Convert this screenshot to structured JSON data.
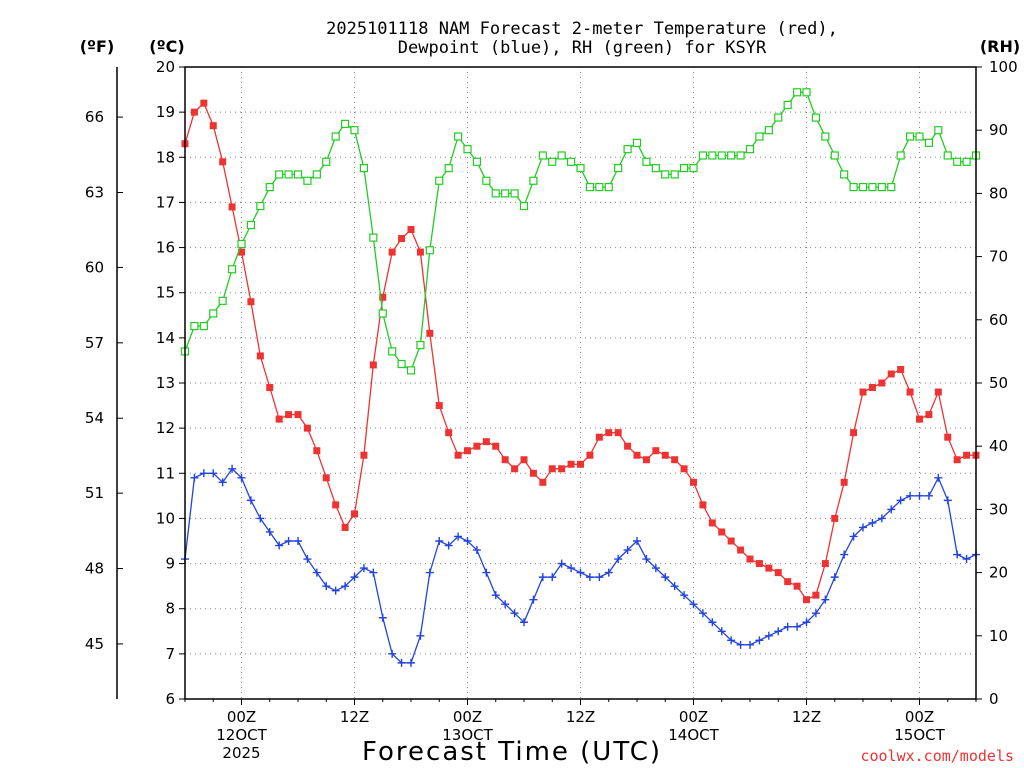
{
  "chart_data": {
    "type": "line",
    "title_line1": "2025101118 NAM Forecast 2-meter Temperature (red),",
    "title_line2": "Dewpoint (blue), RH (green) for KSYR",
    "unit_f": "(ºF)",
    "unit_c": "(ºC)",
    "unit_rh": "(RH)",
    "xlabel": "Forecast Time (UTC)",
    "credit": "coolwx.com/models",
    "x_range_hours": [
      0,
      84
    ],
    "c_range": [
      6,
      20
    ],
    "rh_range": [
      0,
      100
    ],
    "c_ticks": [
      "6",
      "7",
      "8",
      "9",
      "10",
      "11",
      "12",
      "13",
      "14",
      "15",
      "16",
      "17",
      "18",
      "19",
      "20"
    ],
    "f_ticks": [
      {
        "label": "45",
        "c": 7.22
      },
      {
        "label": "48",
        "c": 8.89
      },
      {
        "label": "51",
        "c": 10.56
      },
      {
        "label": "54",
        "c": 12.22
      },
      {
        "label": "57",
        "c": 13.89
      },
      {
        "label": "60",
        "c": 15.56
      },
      {
        "label": "63",
        "c": 17.22
      },
      {
        "label": "66",
        "c": 18.89
      }
    ],
    "rh_ticks": [
      "0",
      "10",
      "20",
      "30",
      "40",
      "50",
      "60",
      "70",
      "80",
      "90",
      "100"
    ],
    "x_ticks": [
      {
        "hour": 6,
        "lines": [
          "00Z",
          "12OCT",
          "2025"
        ]
      },
      {
        "hour": 18,
        "lines": [
          "12Z"
        ]
      },
      {
        "hour": 30,
        "lines": [
          "00Z",
          "13OCT"
        ]
      },
      {
        "hour": 42,
        "lines": [
          "12Z"
        ]
      },
      {
        "hour": 54,
        "lines": [
          "00Z",
          "14OCT"
        ]
      },
      {
        "hour": 66,
        "lines": [
          "12Z"
        ]
      },
      {
        "hour": 78,
        "lines": [
          "00Z",
          "15OCT"
        ]
      }
    ],
    "series": [
      {
        "name": "Temperature",
        "color": "#ee3333",
        "marker": "square-filled",
        "axis": "c",
        "values": [
          18.3,
          19.0,
          19.2,
          18.7,
          17.9,
          16.9,
          15.9,
          14.8,
          13.6,
          12.9,
          12.2,
          12.3,
          12.3,
          12.0,
          11.5,
          10.9,
          10.3,
          9.8,
          10.1,
          11.4,
          13.4,
          14.9,
          15.9,
          16.2,
          16.4,
          15.9,
          14.1,
          12.5,
          11.9,
          11.4,
          11.5,
          11.6,
          11.7,
          11.6,
          11.3,
          11.1,
          11.3,
          11.0,
          10.8,
          11.1,
          11.1,
          11.2,
          11.2,
          11.4,
          11.8,
          11.9,
          11.9,
          11.6,
          11.4,
          11.3,
          11.5,
          11.4,
          11.3,
          11.1,
          10.8,
          10.3,
          9.9,
          9.7,
          9.5,
          9.3,
          9.1,
          9.0,
          8.9,
          8.8,
          8.6,
          8.5,
          8.2,
          8.3,
          9.0,
          10.0,
          10.8,
          11.9,
          12.8,
          12.9,
          13.0,
          13.2,
          13.3,
          12.8,
          12.2,
          12.3,
          12.8,
          11.8,
          11.3,
          11.4,
          11.4
        ]
      },
      {
        "name": "Dewpoint",
        "color": "#2244dd",
        "marker": "plus",
        "axis": "c",
        "values": [
          9.1,
          10.9,
          11.0,
          11.0,
          10.8,
          11.1,
          10.9,
          10.4,
          10.0,
          9.7,
          9.4,
          9.5,
          9.5,
          9.1,
          8.8,
          8.5,
          8.4,
          8.5,
          8.7,
          8.9,
          8.8,
          7.8,
          7.0,
          6.8,
          6.8,
          7.4,
          8.8,
          9.5,
          9.4,
          9.6,
          9.5,
          9.3,
          8.8,
          8.3,
          8.1,
          7.9,
          7.7,
          8.2,
          8.7,
          8.7,
          9.0,
          8.9,
          8.8,
          8.7,
          8.7,
          8.8,
          9.1,
          9.3,
          9.5,
          9.1,
          8.9,
          8.7,
          8.5,
          8.3,
          8.1,
          7.9,
          7.7,
          7.5,
          7.3,
          7.2,
          7.2,
          7.3,
          7.4,
          7.5,
          7.6,
          7.6,
          7.7,
          7.9,
          8.2,
          8.7,
          9.2,
          9.6,
          9.8,
          9.9,
          10.0,
          10.2,
          10.4,
          10.5,
          10.5,
          10.5,
          10.9,
          10.4,
          9.2,
          9.1,
          9.2
        ]
      },
      {
        "name": "RH",
        "color": "#22cc22",
        "marker": "square-open",
        "axis": "rh",
        "values": [
          55,
          59,
          59,
          61,
          63,
          68,
          72,
          75,
          78,
          81,
          83,
          83,
          83,
          82,
          83,
          85,
          89,
          91,
          90,
          84,
          73,
          61,
          55,
          53,
          52,
          56,
          71,
          82,
          84,
          89,
          87,
          85,
          82,
          80,
          80,
          80,
          78,
          82,
          86,
          85,
          86,
          85,
          84,
          81,
          81,
          81,
          84,
          87,
          88,
          85,
          84,
          83,
          83,
          84,
          84,
          86,
          86,
          86,
          86,
          86,
          87,
          89,
          90,
          92,
          94,
          96,
          96,
          92,
          89,
          86,
          83,
          81,
          81,
          81,
          81,
          81,
          86,
          89,
          89,
          88,
          90,
          86,
          85,
          85,
          86
        ]
      }
    ]
  }
}
